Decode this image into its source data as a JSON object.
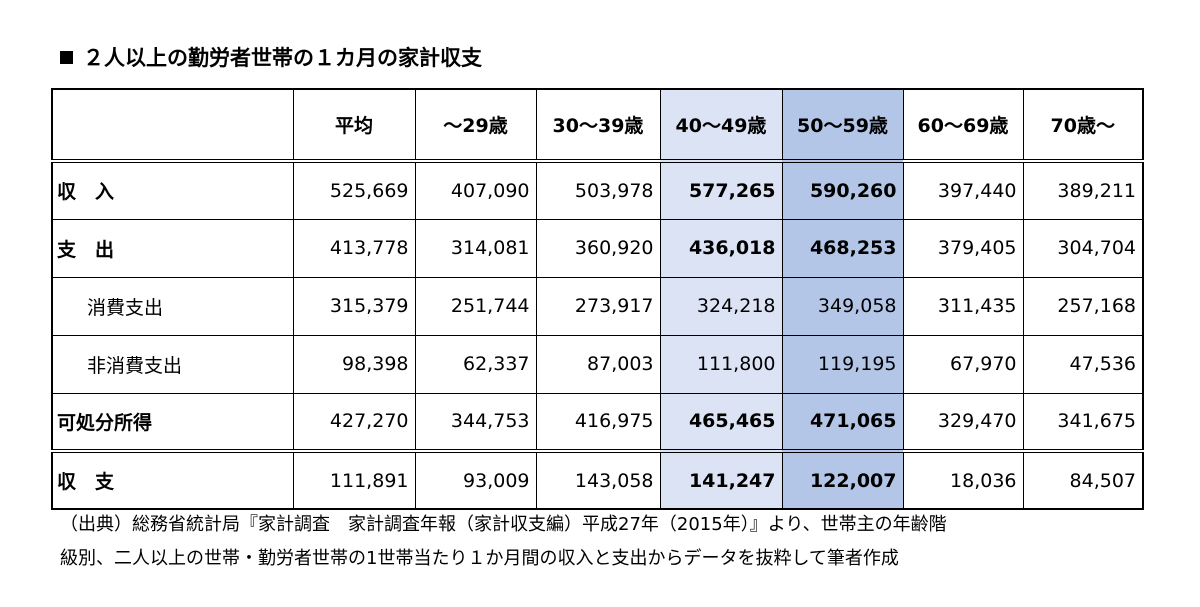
{
  "title": "２人以上の勤労者世帯の１カ月の家計収支",
  "table": {
    "headers": [
      "",
      "平均",
      "～29歳",
      "30～39歳",
      "40～49歳",
      "50～59歳",
      "60～69歳",
      "70歳～"
    ],
    "rows": [
      {
        "label": "収　入",
        "values": [
          "525,669",
          "407,090",
          "503,978",
          "577,265",
          "590,260",
          "397,440",
          "389,211"
        ]
      },
      {
        "label": "支　出",
        "values": [
          "413,778",
          "314,081",
          "360,920",
          "436,018",
          "468,253",
          "379,405",
          "304,704"
        ]
      },
      {
        "label": "消費支出",
        "values": [
          "315,379",
          "251,744",
          "273,917",
          "324,218",
          "349,058",
          "311,435",
          "257,168"
        ]
      },
      {
        "label": "非消費支出",
        "values": [
          "98,398",
          "62,337",
          "87,003",
          "111,800",
          "119,195",
          "67,970",
          "47,536"
        ]
      },
      {
        "label": "可処分所得",
        "values": [
          "427,270",
          "344,753",
          "416,975",
          "465,465",
          "471,065",
          "329,470",
          "341,675"
        ]
      },
      {
        "label": "収　支",
        "values": [
          "111,891",
          "93,009",
          "143,058",
          "141,247",
          "122,007",
          "18,036",
          "84,507"
        ]
      }
    ]
  },
  "source": {
    "line1": "（出典）総務省統計局『家計調査　家計調査年報（家計収支編）平成27年（2015年）』より、世帯主の年齢階",
    "line2": "級別、二人以上の世帯・勤労者世帯の1世帯当たり１か月間の収入と支出からデータを抜粋して筆者作成"
  },
  "colors": {
    "highlight_40s": "#dce3f5",
    "highlight_50s": "#b4c6e7"
  }
}
